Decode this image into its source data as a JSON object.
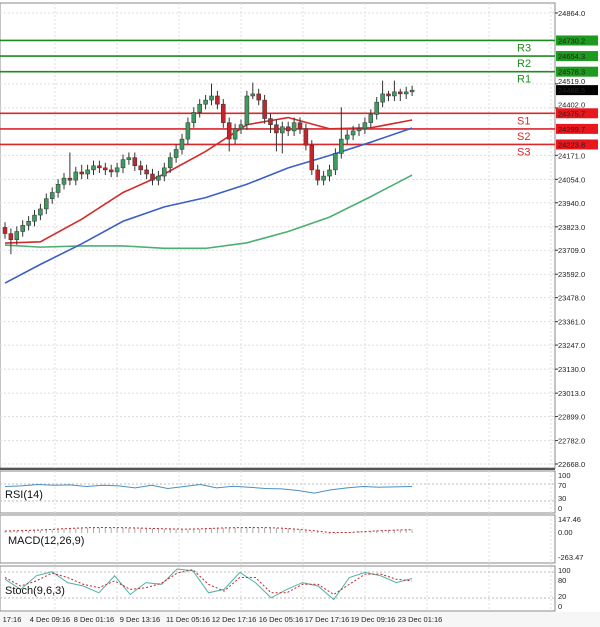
{
  "chart_data": {
    "type": "candlestick",
    "price_axis": {
      "range": [
        22668.0,
        24864.0
      ],
      "ticks": [
        "24864.0",
        "24519.0",
        "24402.0",
        "24171.0",
        "24054.0",
        "23940.0",
        "23823.0",
        "23709.0",
        "23592.0",
        "23478.0",
        "23361.0",
        "23247.0",
        "23130.0",
        "23013.0",
        "22899.0",
        "22782.0",
        "22668.0"
      ],
      "tick_values": [
        24864,
        24519,
        24402,
        24171,
        24054,
        23940,
        23823,
        23709,
        23592,
        23478,
        23361,
        23247,
        23130,
        23013,
        22899,
        22782,
        22668
      ]
    },
    "x_ticks": [
      "17:16",
      "4 Dec 09:16",
      "8 Dec 01:16",
      "9 Dec 13:16",
      "11 Dec 05:16",
      "12 Dec 17:16",
      "16 Dec 05:16",
      "17 Dec 17:16",
      "19 Dec 09:16",
      "23 Dec 01:16"
    ],
    "grid": true,
    "colors": {
      "up": "#3e9a5e",
      "down": "#c0262b",
      "ma_fast": "#d42a2a",
      "ma_mid": "#3b5fc4",
      "ma_slow": "#4caf72",
      "resistance": "#1f8a1f",
      "support": "#d8282e",
      "current": "#000000"
    },
    "current_price": "24488.5",
    "levels": [
      {
        "name": "R3",
        "value": 24730.2,
        "label": "24730.2",
        "type": "resistance"
      },
      {
        "name": "R2",
        "value": 24654.3,
        "label": "24654.3",
        "type": "resistance"
      },
      {
        "name": "R1",
        "value": 24578.3,
        "label": "24578.3",
        "type": "resistance"
      },
      {
        "name": "S1",
        "value": 24375.7,
        "label": "24375.7",
        "type": "support"
      },
      {
        "name": "S2",
        "value": 24299.7,
        "label": "24299.7",
        "type": "support"
      },
      {
        "name": "S3",
        "value": 24223.8,
        "label": "24223.8",
        "type": "support"
      }
    ],
    "ohlc": [
      [
        23820,
        23845,
        23765,
        23790
      ],
      [
        23790,
        23815,
        23690,
        23760
      ],
      [
        23760,
        23825,
        23735,
        23800
      ],
      [
        23800,
        23855,
        23775,
        23830
      ],
      [
        23830,
        23875,
        23805,
        23850
      ],
      [
        23850,
        23905,
        23825,
        23880
      ],
      [
        23880,
        23935,
        23855,
        23910
      ],
      [
        23910,
        23985,
        23885,
        23960
      ],
      [
        23960,
        24015,
        23935,
        23990
      ],
      [
        23990,
        24055,
        23965,
        24030
      ],
      [
        24030,
        24085,
        24005,
        24060
      ],
      [
        24060,
        24185,
        24025,
        24050
      ],
      [
        24050,
        24115,
        24025,
        24090
      ],
      [
        24090,
        24125,
        24055,
        24080
      ],
      [
        24080,
        24125,
        24055,
        24100
      ],
      [
        24100,
        24145,
        24075,
        24120
      ],
      [
        24120,
        24145,
        24085,
        24110
      ],
      [
        24110,
        24135,
        24075,
        24100
      ],
      [
        24100,
        24125,
        24065,
        24090
      ],
      [
        24090,
        24135,
        24065,
        24110
      ],
      [
        24110,
        24175,
        24085,
        24150
      ],
      [
        24150,
        24185,
        24125,
        24160
      ],
      [
        24160,
        24185,
        24095,
        24120
      ],
      [
        24120,
        24145,
        24075,
        24100
      ],
      [
        24100,
        24125,
        24055,
        24080
      ],
      [
        24080,
        24105,
        24025,
        24050
      ],
      [
        24050,
        24095,
        24025,
        24070
      ],
      [
        24070,
        24135,
        24045,
        24110
      ],
      [
        24110,
        24185,
        24085,
        24160
      ],
      [
        24160,
        24225,
        24135,
        24200
      ],
      [
        24200,
        24275,
        24175,
        24250
      ],
      [
        24250,
        24355,
        24225,
        24330
      ],
      [
        24330,
        24405,
        24305,
        24380
      ],
      [
        24380,
        24445,
        24355,
        24420
      ],
      [
        24420,
        24465,
        24395,
        24440
      ],
      [
        24440,
        24520,
        24415,
        24460
      ],
      [
        24460,
        24485,
        24395,
        24420
      ],
      [
        24420,
        24445,
        24305,
        24330
      ],
      [
        24330,
        24355,
        24190,
        24250
      ],
      [
        24250,
        24325,
        24225,
        24300
      ],
      [
        24300,
        24345,
        24275,
        24320
      ],
      [
        24320,
        24485,
        24295,
        24460
      ],
      [
        24460,
        24525,
        24445,
        24470
      ],
      [
        24470,
        24495,
        24415,
        24440
      ],
      [
        24440,
        24465,
        24325,
        24350
      ],
      [
        24350,
        24375,
        24280,
        24320
      ],
      [
        24320,
        24345,
        24190,
        24280
      ],
      [
        24280,
        24335,
        24180,
        24310
      ],
      [
        24310,
        24335,
        24265,
        24290
      ],
      [
        24290,
        24355,
        24265,
        24330
      ],
      [
        24330,
        24355,
        24275,
        24300
      ],
      [
        24300,
        24325,
        24195,
        24220
      ],
      [
        24220,
        24245,
        24075,
        24100
      ],
      [
        24100,
        24125,
        24025,
        24050
      ],
      [
        24050,
        24095,
        24025,
        24070
      ],
      [
        24070,
        24125,
        24045,
        24100
      ],
      [
        24100,
        24205,
        24075,
        24180
      ],
      [
        24180,
        24405,
        24155,
        24250
      ],
      [
        24250,
        24295,
        24225,
        24270
      ],
      [
        24270,
        24315,
        24245,
        24290
      ],
      [
        24290,
        24325,
        24265,
        24300
      ],
      [
        24300,
        24355,
        24275,
        24330
      ],
      [
        24330,
        24395,
        24305,
        24370
      ],
      [
        24370,
        24455,
        24345,
        24430
      ],
      [
        24430,
        24535,
        24405,
        24470
      ],
      [
        24470,
        24485,
        24435,
        24460
      ],
      [
        24460,
        24535,
        24435,
        24480
      ],
      [
        24480,
        24495,
        24435,
        24470
      ],
      [
        24470,
        24505,
        24445,
        24480
      ],
      [
        24480,
        24510,
        24460,
        24488.5
      ]
    ],
    "moving_averages": {
      "index": [
        0,
        6,
        13,
        20,
        27,
        34,
        41,
        48,
        55,
        62,
        69
      ],
      "fast": [
        23744,
        23750,
        23860,
        23990,
        24080,
        24190,
        24320,
        24355,
        24300,
        24305,
        24343
      ],
      "mid": [
        23549,
        23640,
        23740,
        23850,
        23920,
        23965,
        24030,
        24110,
        24170,
        24235,
        24304
      ],
      "slow": [
        23734,
        23724,
        23730,
        23730,
        23718,
        23718,
        23745,
        23800,
        23870,
        23970,
        24075
      ]
    },
    "indicators": {
      "rsi": {
        "label": "RSI(14)",
        "levels": [
          "100",
          "70",
          "30",
          "0"
        ],
        "values": [
          62,
          64,
          68,
          66,
          67,
          62,
          66,
          64,
          58,
          66,
          56,
          62,
          68,
          58,
          63,
          60,
          56,
          55,
          50,
          42,
          52,
          58,
          62,
          60,
          61,
          62
        ]
      },
      "macd": {
        "label": "MACD(12,26,9)",
        "levels": [
          "147.46",
          "0.00",
          "-263.47"
        ],
        "hist": [
          20,
          25,
          30,
          40,
          50,
          60,
          62,
          60,
          55,
          50,
          45,
          40,
          45,
          55,
          60,
          62,
          60,
          55,
          40,
          20,
          -10,
          5,
          20,
          30,
          35,
          40
        ],
        "signal": [
          22,
          27,
          33,
          42,
          52,
          60,
          62,
          61,
          57,
          52,
          47,
          44,
          47,
          55,
          60,
          62,
          61,
          55,
          42,
          25,
          5,
          5,
          15,
          25,
          33,
          38
        ]
      },
      "stoch": {
        "label": "Stoch(9,6,3)",
        "levels": [
          "100",
          "80",
          "20",
          "0"
        ],
        "k": [
          70,
          40,
          80,
          92,
          60,
          50,
          30,
          80,
          25,
          60,
          55,
          100,
          95,
          30,
          40,
          90,
          60,
          15,
          40,
          60,
          50,
          10,
          75,
          90,
          80,
          60,
          72
        ],
        "d": [
          75,
          50,
          65,
          88,
          75,
          55,
          45,
          65,
          40,
          45,
          58,
          88,
          98,
          55,
          35,
          75,
          75,
          30,
          30,
          55,
          55,
          25,
          55,
          85,
          85,
          70,
          65
        ]
      }
    }
  }
}
